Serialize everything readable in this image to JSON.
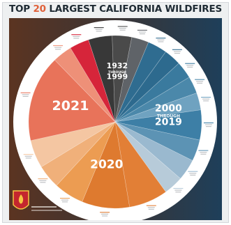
{
  "title": {
    "pre": "TOP",
    "num": "20",
    "post": "LARGEST CALIFORNIA WILDFIRES"
  },
  "poster": {
    "colors": {
      "background_left": "#5b3421",
      "background_right": "#1e3f5a",
      "ring": "#ffffff"
    },
    "agency": "CAL FIRE"
  },
  "chart_data": {
    "type": "pie",
    "title": "TOP 20 LARGEST CALIFORNIA WILDFIRES",
    "groups": [
      {
        "label": "1932 THROUGH 1999",
        "big": "1932",
        "small": "THROUGH",
        "big2": "1999",
        "color": "#2b2b2b"
      },
      {
        "label": "2000 THROUGH 2019",
        "big": "2000",
        "small": "THROUGH",
        "big2": "2019",
        "color": "#2f6f96"
      },
      {
        "label": "2020",
        "big": "2020",
        "color": "#e27a34"
      },
      {
        "label": "2021",
        "big": "2021",
        "color": "#e36f55"
      }
    ],
    "slices": [
      {
        "group": "1932 THROUGH 1999",
        "value": 6.1,
        "color": "#383838"
      },
      {
        "group": "1932 THROUGH 1999",
        "value": 5.0,
        "color": "#4a4a4a"
      },
      {
        "group": "1932 THROUGH 1999",
        "value": 4.4,
        "color": "#5f6368"
      },
      {
        "group": "2000 THROUGH 2019",
        "value": 5.0,
        "color": "#2f6c90"
      },
      {
        "group": "2000 THROUGH 2019",
        "value": 4.4,
        "color": "#2d6a8e"
      },
      {
        "group": "2000 THROUGH 2019",
        "value": 4.4,
        "color": "#3a7a9e"
      },
      {
        "group": "2000 THROUGH 2019",
        "value": 4.4,
        "color": "#4b88aa"
      },
      {
        "group": "2000 THROUGH 2019",
        "value": 4.4,
        "color": "#6fa2c0"
      },
      {
        "group": "2000 THROUGH 2019",
        "value": 7.7,
        "color": "#3d7fa6"
      },
      {
        "group": "2000 THROUGH 2019",
        "value": 5.5,
        "color": "#5c93b4"
      },
      {
        "group": "2000 THROUGH 2019",
        "value": 5.5,
        "color": "#9ab9cf"
      },
      {
        "group": "2000 THROUGH 2019",
        "value": 5.0,
        "color": "#b7cbd9"
      },
      {
        "group": "2020",
        "value": 10.0,
        "color": "#e27f36"
      },
      {
        "group": "2020",
        "value": 12.2,
        "color": "#de7a2f"
      },
      {
        "group": "2020",
        "value": 7.7,
        "color": "#ec9c52"
      },
      {
        "group": "2020",
        "value": 6.1,
        "color": "#f0b07a"
      },
      {
        "group": "2021",
        "value": 7.2,
        "color": "#f4c6a2"
      },
      {
        "group": "2021",
        "value": 22.2,
        "color": "#e8735a"
      },
      {
        "group": "2021",
        "value": 5.0,
        "color": "#ee9078"
      },
      {
        "group": "2021",
        "value": 5.0,
        "color": "#d6253a"
      }
    ]
  }
}
